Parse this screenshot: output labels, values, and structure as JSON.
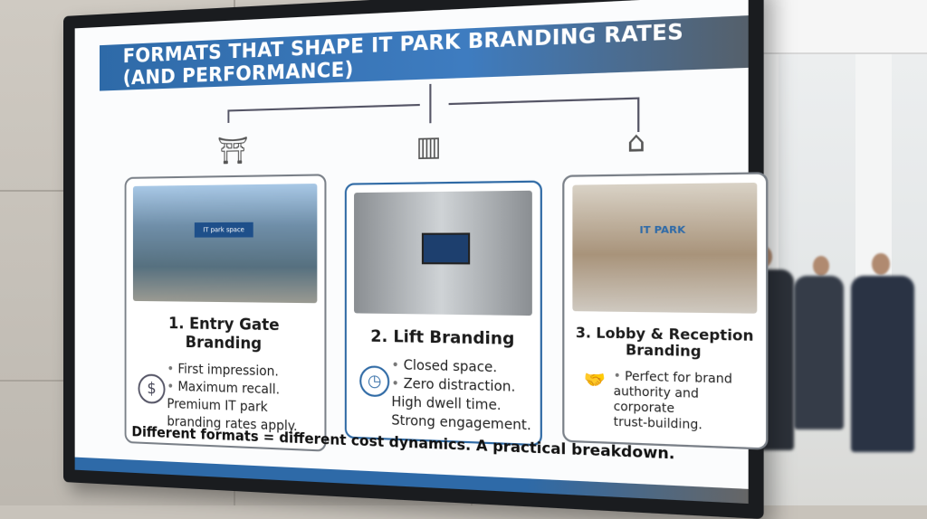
{
  "display": {
    "title": "FORMATS THAT SHAPE IT PARK BRANDING RATES (AND PERFORMANCE)",
    "cards": [
      {
        "heading": "1. Entry Gate Branding",
        "bullets": [
          "First impression.",
          "Maximum recall.",
          "Premium IT park",
          "branding rates apply."
        ],
        "icon": "dollar-icon",
        "top_icon": "archway-icon",
        "photo_sign": "IT park space"
      },
      {
        "heading": "2. Lift Branding",
        "bullets": [
          "Closed space.",
          "Zero distraction.",
          "High dwell time.",
          "Strong engagement."
        ],
        "icon": "clock-icon",
        "top_icon": "elevator-icon"
      },
      {
        "heading": "3. Lobby & Reception Branding",
        "bullets": [
          "Perfect for brand",
          "authority and",
          "corporate",
          "trust-building."
        ],
        "icon": "handshake-shield-icon",
        "top_icon": "reception-desk-icon",
        "photo_sign": "IT PARK"
      }
    ],
    "footer": "Different formats = different cost dynamics. A practical breakdown.",
    "colors": {
      "accent": "#2e6aa8",
      "frame": "#1a1c1f"
    }
  }
}
